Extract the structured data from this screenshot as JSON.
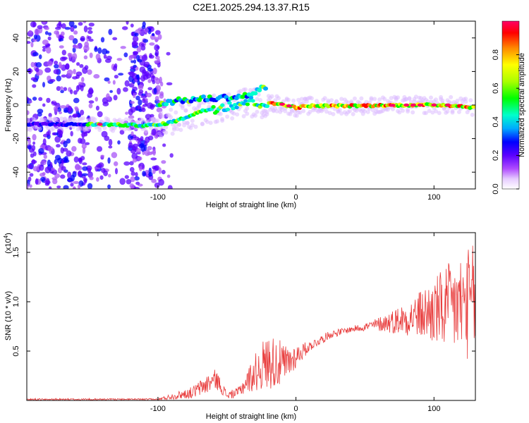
{
  "title": "C2E1.2025.294.13.37.R15",
  "chart_data": [
    {
      "id": "spectrogram",
      "type": "heatmap",
      "xlabel": "Height of straight line (km)",
      "ylabel": "Frequency (Hz)",
      "xlim": [
        -195,
        130
      ],
      "ylim": [
        -50,
        50
      ],
      "xticks": [
        -100,
        0,
        100
      ],
      "xtick_labels": [
        "-100",
        "0",
        "100"
      ],
      "yticks": [
        -40,
        -20,
        0,
        20,
        40
      ],
      "ytick_labels": [
        "-40",
        "-20",
        "0",
        "20",
        "40"
      ],
      "colorbar": {
        "label": "Normalized spectral amplitude",
        "range": [
          0,
          1
        ],
        "ticks": [
          0.0,
          0.2,
          0.4,
          0.6,
          0.8
        ],
        "tick_labels": [
          "0.0",
          "0.2",
          "0.4",
          "0.6",
          "0.8"
        ],
        "colormap": [
          "#ffffff",
          "#a855f7",
          "#5b00ff",
          "#0000ff",
          "#00aaff",
          "#00ffcc",
          "#00ff00",
          "#aaff00",
          "#ffff00",
          "#ff8800",
          "#ff0000",
          "#ff0066"
        ]
      },
      "ridge": [
        {
          "x": -195,
          "f": -11.5
        },
        {
          "x": -150,
          "f": -11.5
        },
        {
          "x": -140,
          "f": -11.5
        },
        {
          "x": -120,
          "f": -12
        },
        {
          "x": -100,
          "f": -12
        },
        {
          "x": -85,
          "f": -9
        },
        {
          "x": -70,
          "f": -4
        },
        {
          "x": -55,
          "f": -1
        },
        {
          "x": -35,
          "f": 2
        },
        {
          "x": -20,
          "f": 1
        },
        {
          "x": -10,
          "f": 0.5
        },
        {
          "x": 0,
          "f": -1.5
        },
        {
          "x": 10,
          "f": -0.5
        },
        {
          "x": 40,
          "f": -0.5
        },
        {
          "x": 80,
          "f": 0
        },
        {
          "x": 110,
          "f": 0
        },
        {
          "x": 130,
          "f": -1.5
        }
      ],
      "upper_ridge": [
        {
          "x": -100,
          "f": 1
        },
        {
          "x": -80,
          "f": 3
        },
        {
          "x": -60,
          "f": 4
        },
        {
          "x": -40,
          "f": 5
        },
        {
          "x": -30,
          "f": 7
        },
        {
          "x": -25,
          "f": 10
        }
      ]
    },
    {
      "id": "snr",
      "type": "line",
      "xlabel": "Height of straight line (km)",
      "ylabel": "SNR (10 * v/v)",
      "scale_label_base": "(x10",
      "scale_label_exp": "4",
      "scale_label_close": ")",
      "xlim": [
        -195,
        130
      ],
      "ylim": [
        0,
        1.7
      ],
      "xticks": [
        -100,
        0,
        100
      ],
      "xtick_labels": [
        "-100",
        "0",
        "100"
      ],
      "yticks": [
        0.5,
        1.0,
        1.5
      ],
      "ytick_labels": [
        "0.5",
        "1.0",
        "1.5"
      ],
      "series": [
        {
          "name": "SNR",
          "color": "#e83c3c",
          "envelope": [
            {
              "x": -195,
              "base": 0.01,
              "amp": 0.01
            },
            {
              "x": -100,
              "base": 0.01,
              "amp": 0.01
            },
            {
              "x": -90,
              "base": 0.04,
              "amp": 0.03
            },
            {
              "x": -75,
              "base": 0.08,
              "amp": 0.06
            },
            {
              "x": -65,
              "base": 0.16,
              "amp": 0.1
            },
            {
              "x": -58,
              "base": 0.22,
              "amp": 0.1
            },
            {
              "x": -50,
              "base": 0.05,
              "amp": 0.04
            },
            {
              "x": -42,
              "base": 0.08,
              "amp": 0.05
            },
            {
              "x": -35,
              "base": 0.2,
              "amp": 0.12
            },
            {
              "x": -25,
              "base": 0.35,
              "amp": 0.25
            },
            {
              "x": -18,
              "base": 0.4,
              "amp": 0.28
            },
            {
              "x": -8,
              "base": 0.35,
              "amp": 0.22
            },
            {
              "x": 0,
              "base": 0.45,
              "amp": 0.12
            },
            {
              "x": 10,
              "base": 0.55,
              "amp": 0.05
            },
            {
              "x": 25,
              "base": 0.67,
              "amp": 0.04
            },
            {
              "x": 40,
              "base": 0.72,
              "amp": 0.03
            },
            {
              "x": 55,
              "base": 0.76,
              "amp": 0.05
            },
            {
              "x": 70,
              "base": 0.8,
              "amp": 0.12
            },
            {
              "x": 85,
              "base": 0.85,
              "amp": 0.2
            },
            {
              "x": 100,
              "base": 0.9,
              "amp": 0.35
            },
            {
              "x": 115,
              "base": 0.95,
              "amp": 0.5
            },
            {
              "x": 130,
              "base": 1.0,
              "amp": 0.6
            }
          ]
        }
      ]
    }
  ]
}
